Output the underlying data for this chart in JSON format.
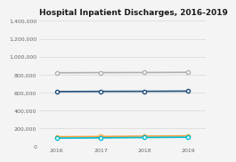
{
  "title": "Hospital Inpatient Discharges, 2016-2019",
  "years": [
    2016,
    2017,
    2018,
    2019
  ],
  "series": [
    {
      "values": [
        820000,
        822000,
        823000,
        825000
      ],
      "color": "#b0b0b0",
      "linewidth": 1.2,
      "marker": "o",
      "markersize": 3,
      "markerfacecolor": "white",
      "markeredgewidth": 1.0
    },
    {
      "values": [
        610000,
        612000,
        613000,
        615000
      ],
      "color": "#1f4e79",
      "linewidth": 1.2,
      "marker": "o",
      "markersize": 3,
      "markerfacecolor": "white",
      "markeredgewidth": 1.0
    },
    {
      "values": [
        105000,
        108000,
        112000,
        115000
      ],
      "color": "#f4a03a",
      "linewidth": 1.2,
      "marker": "o",
      "markersize": 3,
      "markerfacecolor": "white",
      "markeredgewidth": 1.0
    },
    {
      "values": [
        90000,
        93000,
        97000,
        100000
      ],
      "color": "#00bcd4",
      "linewidth": 1.2,
      "marker": "o",
      "markersize": 3,
      "markerfacecolor": "white",
      "markeredgewidth": 1.0
    }
  ],
  "ylim": [
    0,
    1400000
  ],
  "yticks": [
    0,
    200000,
    400000,
    600000,
    800000,
    1000000,
    1200000,
    1400000
  ],
  "ytick_labels": [
    "0",
    "200,000",
    "400,000",
    "600,000",
    "800,000",
    "1,000,000",
    "1,200,000",
    "1,400,000"
  ],
  "background_color": "#f4f4f4",
  "title_color": "#1a1a1a",
  "title_fontsize": 6.5,
  "tick_fontsize": 4.5,
  "grid_color": "#d8d8d8",
  "xlim": [
    2015.6,
    2019.4
  ]
}
